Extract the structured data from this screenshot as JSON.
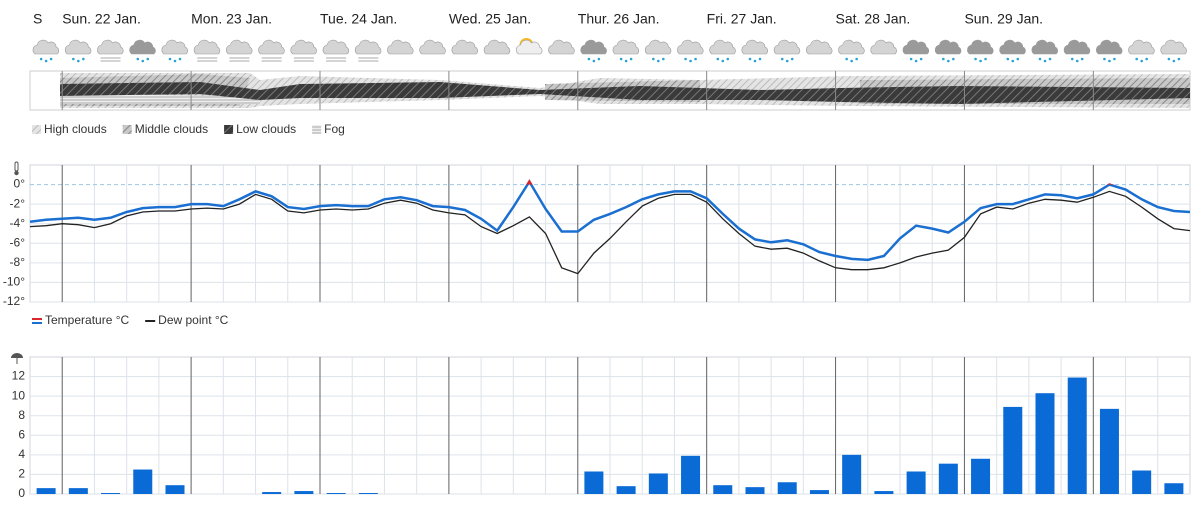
{
  "days": [
    "S",
    "Sun. 22 Jan.",
    "Mon. 23 Jan.",
    "Tue. 24 Jan.",
    "Wed. 25 Jan.",
    "Thur. 26 Jan.",
    "Fri. 27 Jan.",
    "Sat. 28 Jan.",
    "Sun. 29 Jan."
  ],
  "cloud_legend": [
    "High clouds",
    "Middle clouds",
    "Low clouds",
    "Fog"
  ],
  "chart_data": [
    {
      "type": "line",
      "series": [
        {
          "name": "Temperature °C",
          "color": "#1a6fd1",
          "color_above_zero": "#d9272e",
          "values": [
            -3.8,
            -3.6,
            -3.5,
            -3.4,
            -3.6,
            -3.4,
            -2.8,
            -2.4,
            -2.3,
            -2.3,
            -2.0,
            -2.0,
            -2.2,
            -1.5,
            -0.7,
            -1.2,
            -2.3,
            -2.5,
            -2.2,
            -2.1,
            -2.2,
            -2.2,
            -1.5,
            -1.3,
            -1.6,
            -2.2,
            -2.3,
            -2.6,
            -3.5,
            -4.7,
            -2.3,
            0.3,
            -2.5,
            -4.8,
            -4.8,
            -3.6,
            -3.0,
            -2.3,
            -1.5,
            -1.0,
            -0.7,
            -0.7,
            -1.4,
            -3.0,
            -4.5,
            -5.6,
            -5.9,
            -5.7,
            -6.1,
            -6.9,
            -7.3,
            -7.6,
            -7.7,
            -7.3,
            -5.5,
            -4.2,
            -4.5,
            -4.9,
            -3.8,
            -2.4,
            -2.0,
            -2.0,
            -1.5,
            -1.0,
            -1.1,
            -1.4,
            -1.0,
            0.0,
            -0.5,
            -1.5,
            -2.3,
            -2.7,
            -2.8
          ]
        },
        {
          "name": "Dew point °C",
          "color": "#222222",
          "values": [
            -4.3,
            -4.2,
            -4.0,
            -4.1,
            -4.4,
            -4.0,
            -3.2,
            -2.8,
            -2.7,
            -2.7,
            -2.5,
            -2.4,
            -2.5,
            -2.0,
            -1.0,
            -1.5,
            -2.7,
            -2.9,
            -2.6,
            -2.5,
            -2.6,
            -2.5,
            -1.9,
            -1.6,
            -1.9,
            -2.6,
            -2.9,
            -3.1,
            -4.3,
            -5.0,
            -4.2,
            -3.3,
            -5.0,
            -8.5,
            -9.1,
            -7.0,
            -5.5,
            -3.8,
            -2.2,
            -1.4,
            -1.0,
            -1.0,
            -1.8,
            -3.5,
            -5.0,
            -6.3,
            -6.6,
            -6.5,
            -7.0,
            -7.8,
            -8.5,
            -8.7,
            -8.7,
            -8.5,
            -8.0,
            -7.4,
            -7.0,
            -6.7,
            -5.4,
            -3.0,
            -2.3,
            -2.5,
            -1.9,
            -1.5,
            -1.6,
            -1.8,
            -1.3,
            -0.7,
            -1.2,
            -2.3,
            -3.5,
            -4.5,
            -4.7
          ]
        }
      ],
      "ylim": [
        -12,
        2
      ],
      "yticks": [
        {
          "value": 0,
          "label": "0°"
        },
        {
          "value": -2,
          "label": "-2°"
        },
        {
          "value": -4,
          "label": "-4°"
        },
        {
          "value": -6,
          "label": "-6°"
        },
        {
          "value": -8,
          "label": "-8°"
        },
        {
          "value": -10,
          "label": "-10°"
        },
        {
          "value": -12,
          "label": "-12°"
        }
      ],
      "grid": true
    },
    {
      "type": "bar",
      "color": "#0a6ad6",
      "values": [
        0.6,
        0.6,
        0.1,
        2.5,
        0.9,
        0,
        0,
        0.2,
        0.3,
        0.1,
        0.1,
        0,
        0,
        0,
        0,
        0,
        0,
        2.3,
        0.8,
        2.1,
        3.9,
        0.9,
        0.7,
        1.2,
        0.4,
        4.0,
        0.3,
        2.3,
        3.1,
        3.6,
        8.9,
        10.3,
        11.9,
        8.7,
        2.4,
        1.1
      ],
      "ylim": [
        0,
        14
      ],
      "yticks": [
        0,
        2,
        4,
        6,
        8,
        10,
        12
      ],
      "grid": true
    }
  ]
}
